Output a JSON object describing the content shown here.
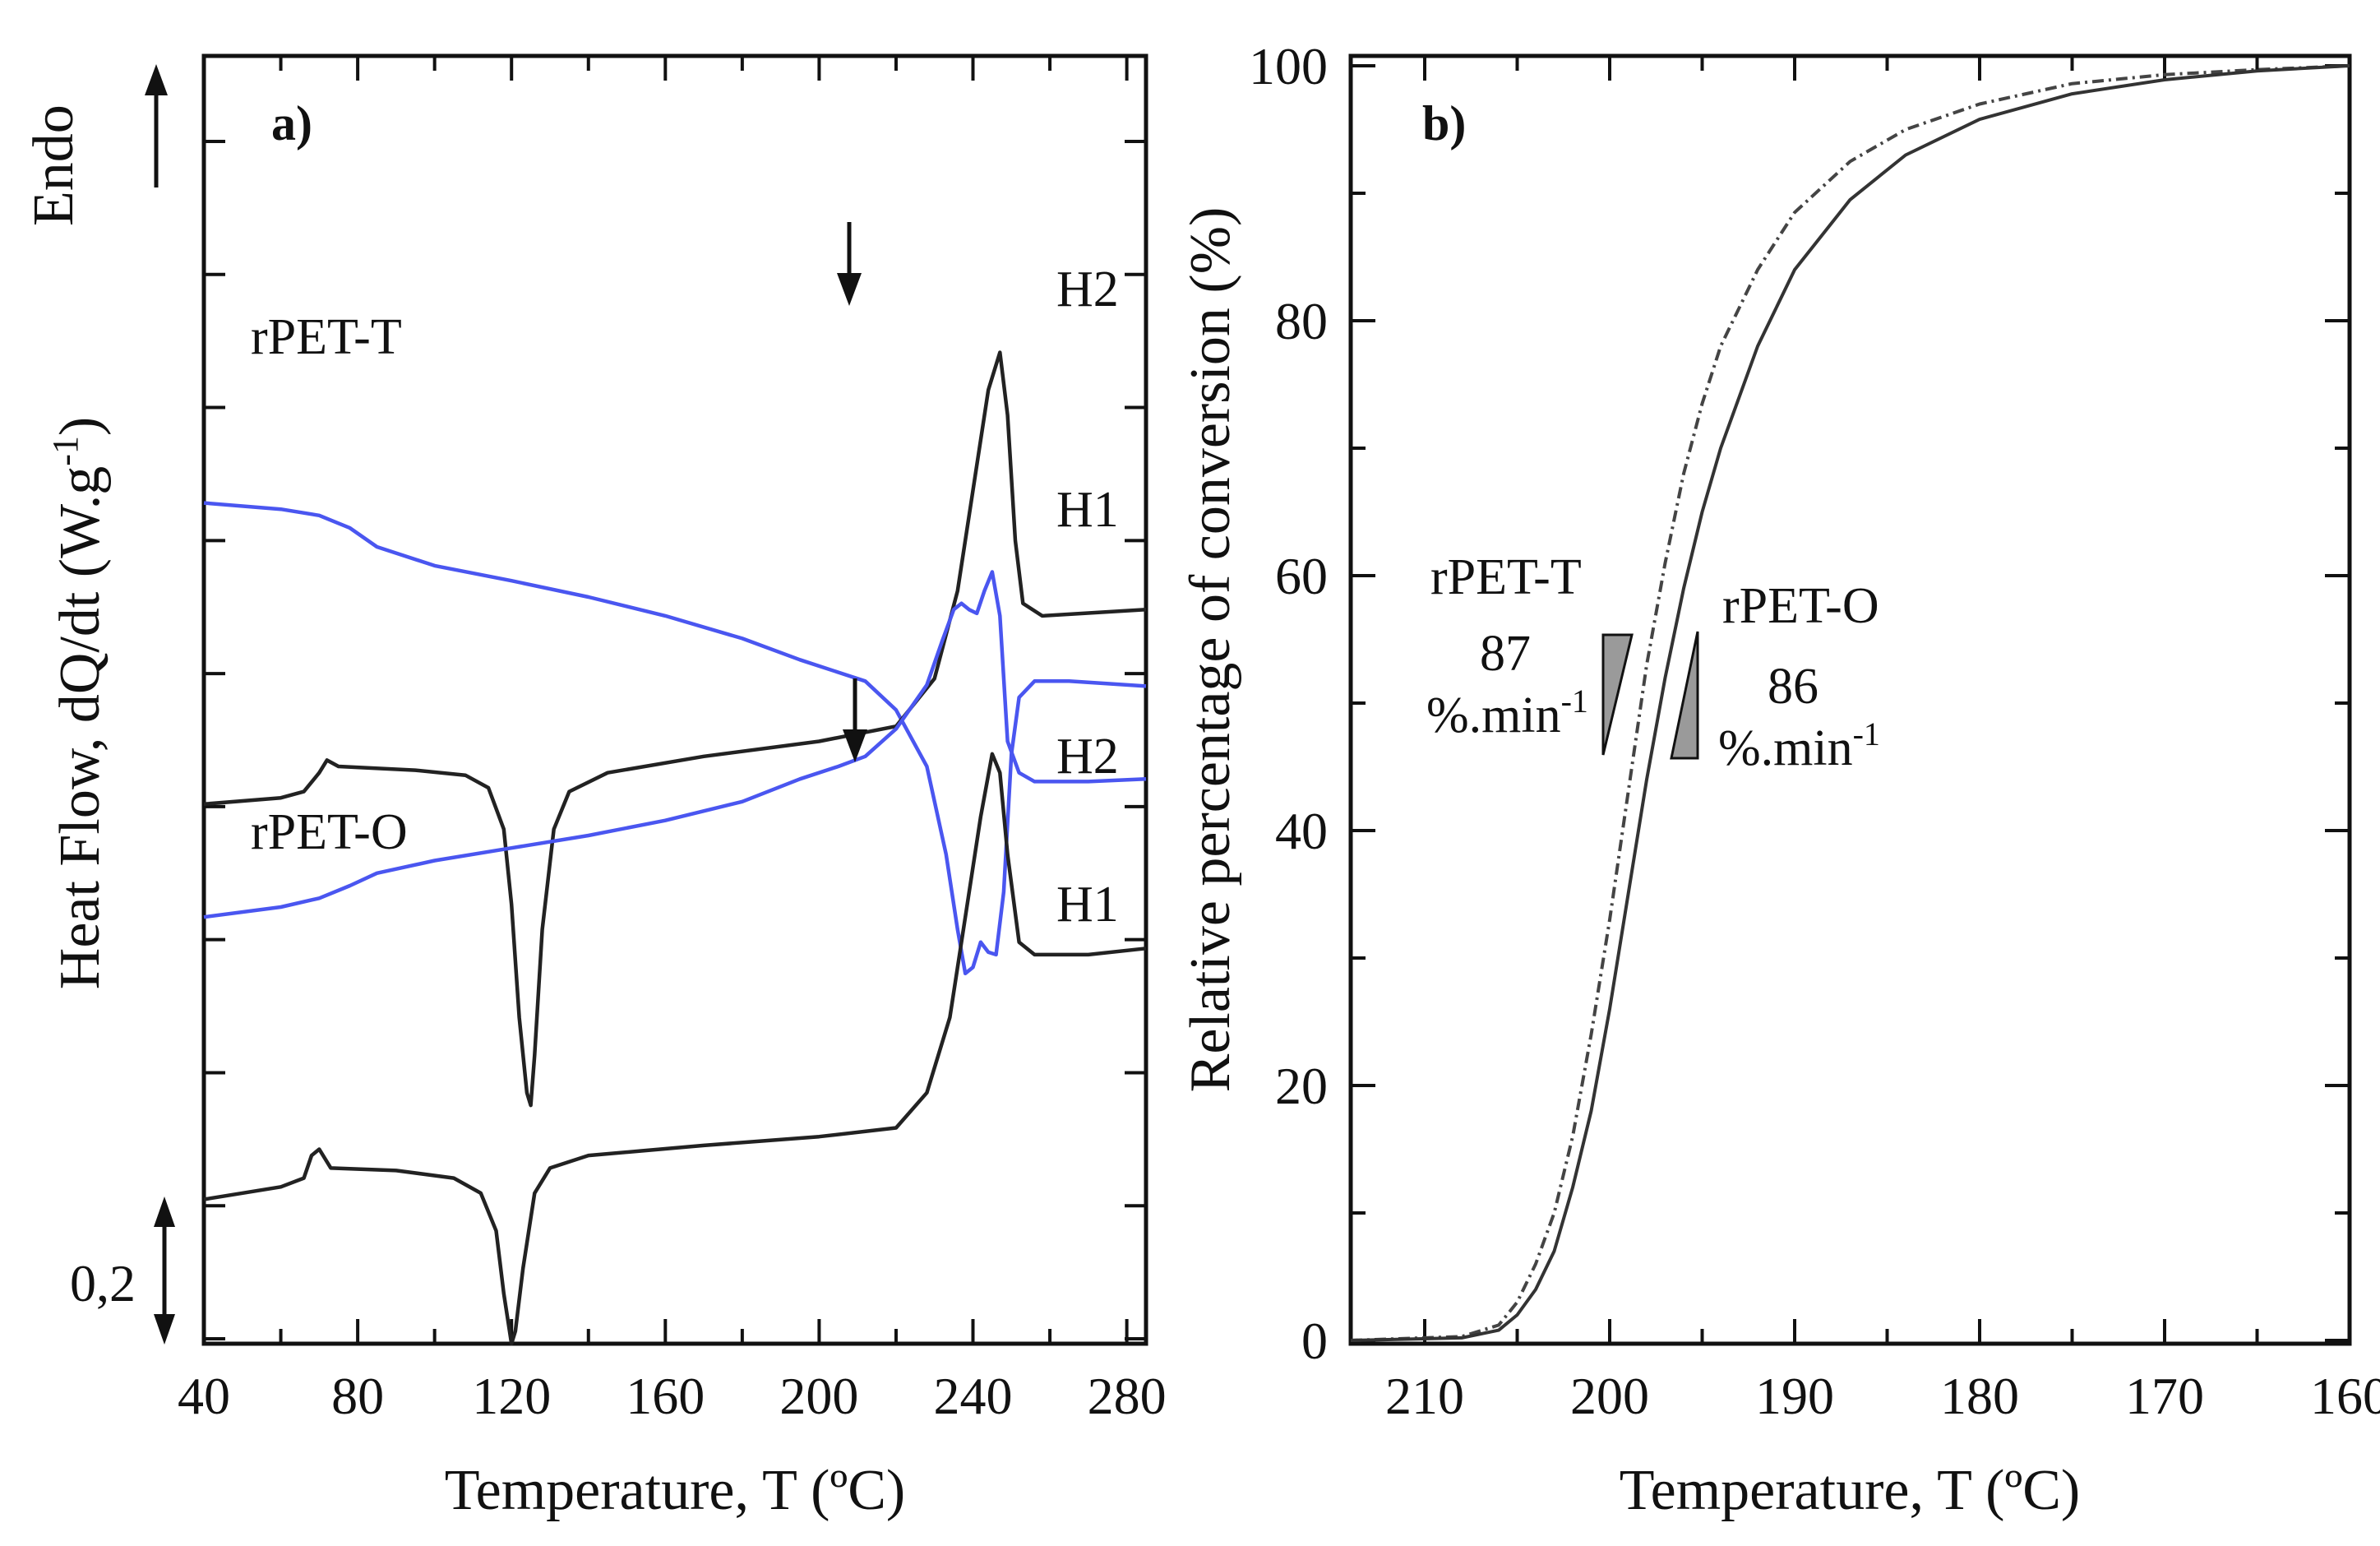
{
  "chart_data": [
    {
      "type": "line",
      "panel": "a)",
      "xlabel": "Temperature, T (ºC)",
      "ylabel": "Heat Flow, dQ/dt (W.g-1)",
      "xlim": [
        40,
        285
      ],
      "xticks": [
        40,
        80,
        120,
        160,
        200,
        240,
        280
      ],
      "ylim": [
        0,
        1
      ],
      "endo_label": "Endo",
      "scale_bar_label": "0,2",
      "scale_bar_value": 0.2,
      "sample_labels": [
        "rPET-T",
        "rPET-O"
      ],
      "arrow_markers": [
        {
          "sample": "rPET-T",
          "x": 209
        },
        {
          "sample": "rPET-O",
          "x": 210
        }
      ],
      "series": [
        {
          "name": "rPET-T H2",
          "label": "H2",
          "color": "#4a56f0",
          "points": [
            [
              40,
              0.33
            ],
            [
              60,
              0.335
            ],
            [
              70,
              0.34
            ],
            [
              78,
              0.35
            ],
            [
              85,
              0.365
            ],
            [
              100,
              0.38
            ],
            [
              120,
              0.392
            ],
            [
              140,
              0.405
            ],
            [
              160,
              0.42
            ],
            [
              180,
              0.438
            ],
            [
              195,
              0.455
            ],
            [
              205,
              0.465
            ],
            [
              212,
              0.472
            ],
            [
              220,
              0.495
            ],
            [
              228,
              0.54
            ],
            [
              233,
              0.61
            ],
            [
              236,
              0.67
            ],
            [
              238,
              0.705
            ],
            [
              240,
              0.7
            ],
            [
              242,
              0.68
            ],
            [
              244,
              0.688
            ],
            [
              246,
              0.69
            ],
            [
              248,
              0.64
            ],
            [
              250,
              0.53
            ],
            [
              252,
              0.485
            ],
            [
              256,
              0.472
            ],
            [
              265,
              0.472
            ],
            [
              285,
              0.476
            ]
          ]
        },
        {
          "name": "rPET-T H1",
          "label": "H1",
          "color": "#222222",
          "points": [
            [
              40,
              0.57
            ],
            [
              60,
              0.565
            ],
            [
              66,
              0.56
            ],
            [
              70,
              0.545
            ],
            [
              72,
              0.535
            ],
            [
              75,
              0.54
            ],
            [
              95,
              0.543
            ],
            [
              108,
              0.547
            ],
            [
              114,
              0.557
            ],
            [
              118,
              0.59
            ],
            [
              120,
              0.65
            ],
            [
              122,
              0.74
            ],
            [
              124,
              0.8
            ],
            [
              125,
              0.81
            ],
            [
              126,
              0.77
            ],
            [
              128,
              0.67
            ],
            [
              131,
              0.59
            ],
            [
              135,
              0.56
            ],
            [
              145,
              0.545
            ],
            [
              170,
              0.532
            ],
            [
              200,
              0.52
            ],
            [
              220,
              0.508
            ],
            [
              230,
              0.47
            ],
            [
              236,
              0.4
            ],
            [
              240,
              0.32
            ],
            [
              244,
              0.24
            ],
            [
              247,
              0.21
            ],
            [
              249,
              0.26
            ],
            [
              251,
              0.36
            ],
            [
              253,
              0.41
            ],
            [
              258,
              0.42
            ],
            [
              285,
              0.415
            ]
          ]
        },
        {
          "name": "rPET-O H2",
          "label": "H2",
          "color": "#4a56f0",
          "points": [
            [
              40,
              0.66
            ],
            [
              60,
              0.652
            ],
            [
              70,
              0.645
            ],
            [
              78,
              0.635
            ],
            [
              85,
              0.625
            ],
            [
              100,
              0.615
            ],
            [
              120,
              0.605
            ],
            [
              140,
              0.595
            ],
            [
              160,
              0.583
            ],
            [
              180,
              0.568
            ],
            [
              195,
              0.55
            ],
            [
              205,
              0.54
            ],
            [
              212,
              0.532
            ],
            [
              220,
              0.51
            ],
            [
              228,
              0.475
            ],
            [
              232,
              0.44
            ],
            [
              235,
              0.415
            ],
            [
              237,
              0.41
            ],
            [
              239,
              0.415
            ],
            [
              241,
              0.418
            ],
            [
              243,
              0.4
            ],
            [
              245,
              0.385
            ],
            [
              247,
              0.42
            ],
            [
              249,
              0.52
            ],
            [
              252,
              0.545
            ],
            [
              256,
              0.552
            ],
            [
              270,
              0.552
            ],
            [
              285,
              0.55
            ]
          ]
        },
        {
          "name": "rPET-O H1",
          "label": "H1",
          "color": "#222222",
          "points": [
            [
              40,
              0.885
            ],
            [
              60,
              0.875
            ],
            [
              66,
              0.868
            ],
            [
              68,
              0.85
            ],
            [
              70,
              0.845
            ],
            [
              73,
              0.86
            ],
            [
              90,
              0.862
            ],
            [
              105,
              0.868
            ],
            [
              112,
              0.88
            ],
            [
              116,
              0.91
            ],
            [
              118,
              0.96
            ],
            [
              120,
              1.0
            ],
            [
              121,
              0.99
            ],
            [
              123,
              0.94
            ],
            [
              126,
              0.88
            ],
            [
              130,
              0.86
            ],
            [
              140,
              0.85
            ],
            [
              170,
              0.842
            ],
            [
              200,
              0.835
            ],
            [
              220,
              0.828
            ],
            [
              228,
              0.8
            ],
            [
              234,
              0.74
            ],
            [
              238,
              0.66
            ],
            [
              242,
              0.58
            ],
            [
              245,
              0.53
            ],
            [
              247,
              0.545
            ],
            [
              249,
              0.61
            ],
            [
              252,
              0.68
            ],
            [
              256,
              0.69
            ],
            [
              270,
              0.69
            ],
            [
              285,
              0.685
            ]
          ]
        }
      ]
    },
    {
      "type": "line",
      "panel": "b)",
      "xlabel": "Temperature, T (ºC)",
      "ylabel": "Relative percentage of conversion (%)",
      "xlim": [
        214,
        160
      ],
      "xticks": [
        210,
        200,
        190,
        180,
        170,
        160
      ],
      "ylim": [
        0,
        100
      ],
      "yticks": [
        0,
        20,
        40,
        60,
        80,
        100
      ],
      "series": [
        {
          "name": "rPET-T",
          "style": "dash-dot",
          "color": "#444444",
          "points": [
            [
              214,
              0
            ],
            [
              208,
              0.3
            ],
            [
              206,
              1.2
            ],
            [
              205,
              3
            ],
            [
              204,
              6
            ],
            [
              203,
              10
            ],
            [
              202,
              16
            ],
            [
              201,
              24
            ],
            [
              200,
              33
            ],
            [
              199,
              43
            ],
            [
              198,
              53
            ],
            [
              197,
              61
            ],
            [
              196,
              68
            ],
            [
              195,
              73.5
            ],
            [
              194,
              78
            ],
            [
              192,
              84
            ],
            [
              190,
              88.5
            ],
            [
              187,
              92.5
            ],
            [
              184,
              95
            ],
            [
              180,
              97
            ],
            [
              175,
              98.6
            ],
            [
              170,
              99.3
            ],
            [
              165,
              99.7
            ],
            [
              160,
              100
            ]
          ]
        },
        {
          "name": "rPET-O",
          "style": "solid",
          "color": "#333333",
          "points": [
            [
              214,
              0
            ],
            [
              208,
              0.2
            ],
            [
              206,
              0.8
            ],
            [
              205,
              2
            ],
            [
              204,
              4
            ],
            [
              203,
              7
            ],
            [
              202,
              12
            ],
            [
              201,
              18
            ],
            [
              200,
              26
            ],
            [
              199,
              35
            ],
            [
              198,
              44
            ],
            [
              197,
              52
            ],
            [
              196,
              59
            ],
            [
              195,
              65
            ],
            [
              194,
              70
            ],
            [
              192,
              78
            ],
            [
              190,
              84
            ],
            [
              187,
              89.5
            ],
            [
              184,
              93
            ],
            [
              180,
              95.8
            ],
            [
              175,
              97.8
            ],
            [
              170,
              98.9
            ],
            [
              165,
              99.6
            ],
            [
              160,
              100
            ]
          ]
        }
      ],
      "annotations": [
        {
          "sample": "rPET-T",
          "rate_value": "87",
          "rate_unit": "%.min-1"
        },
        {
          "sample": "rPET-O",
          "rate_value": "86",
          "rate_unit": "%.min-1"
        }
      ]
    }
  ]
}
